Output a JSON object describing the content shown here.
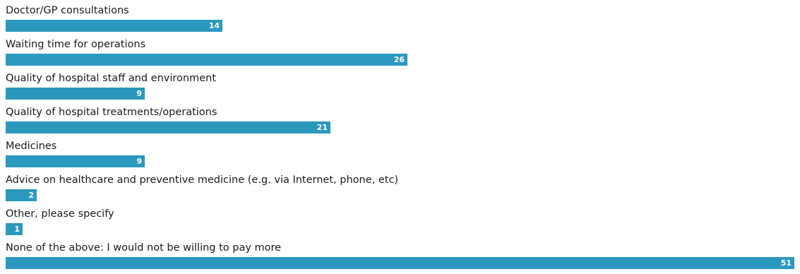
{
  "chart_data": {
    "type": "bar",
    "orientation": "horizontal",
    "categories": [
      "Doctor/GP consultations",
      "Waiting time for operations",
      "Quality of hospital staff and environment",
      "Quality of hospital treatments/operations",
      "Medicines",
      "Advice on healthcare and preventive medicine (e.g. via Internet, phone, etc)",
      "Other, please specify",
      "None of the above: I would not be willing to pay more"
    ],
    "values": [
      14,
      26,
      9,
      21,
      9,
      2,
      1,
      51
    ],
    "xlim": [
      0,
      51
    ],
    "grid": false,
    "bar_color": "#2a99bd",
    "value_label_color": "#ffffff",
    "label_color": "#1a1a1a"
  }
}
